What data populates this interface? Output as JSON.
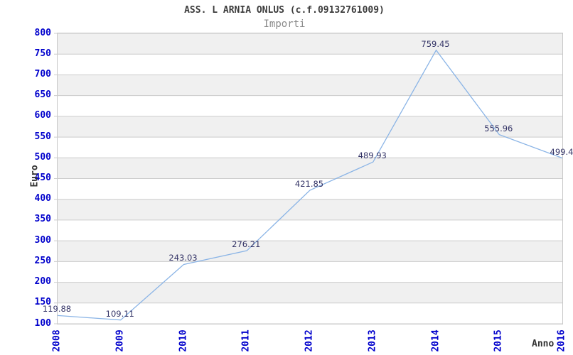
{
  "chart_data": {
    "type": "line",
    "title": "ASS. L ARNIA ONLUS (c.f.09132761009)",
    "subtitle": "Importi",
    "xlabel": "Anno",
    "ylabel": "Euro",
    "categories": [
      "2008",
      "2009",
      "2010",
      "2011",
      "2012",
      "2013",
      "2014",
      "2015",
      "2016"
    ],
    "series": [
      {
        "name": "Importi",
        "values": [
          119.88,
          109.11,
          243.03,
          276.21,
          421.85,
          489.93,
          759.45,
          555.96,
          499.4
        ]
      }
    ],
    "point_labels": [
      "119.88",
      "109.11",
      "243.03",
      "276.21",
      "421.85",
      "489.93",
      "759.45",
      "555.96",
      "499.4"
    ],
    "ylim": [
      100,
      800
    ],
    "yticks": [
      800,
      750,
      700,
      650,
      600,
      550,
      500,
      450,
      400,
      350,
      300,
      250,
      200,
      150,
      100
    ],
    "grid": "horizontal",
    "band_fill": "alternating",
    "legend_position": "none",
    "colors": {
      "line": "#8ab4e6",
      "tick_label": "#0000cc",
      "data_label": "#333366",
      "title": "#3c3c3c",
      "subtitle": "#8a8a8a",
      "axis_label": "#333333",
      "band": "#f0f0f0",
      "gridline": "#cccccc",
      "plot_border": "#c8c8c8"
    }
  }
}
